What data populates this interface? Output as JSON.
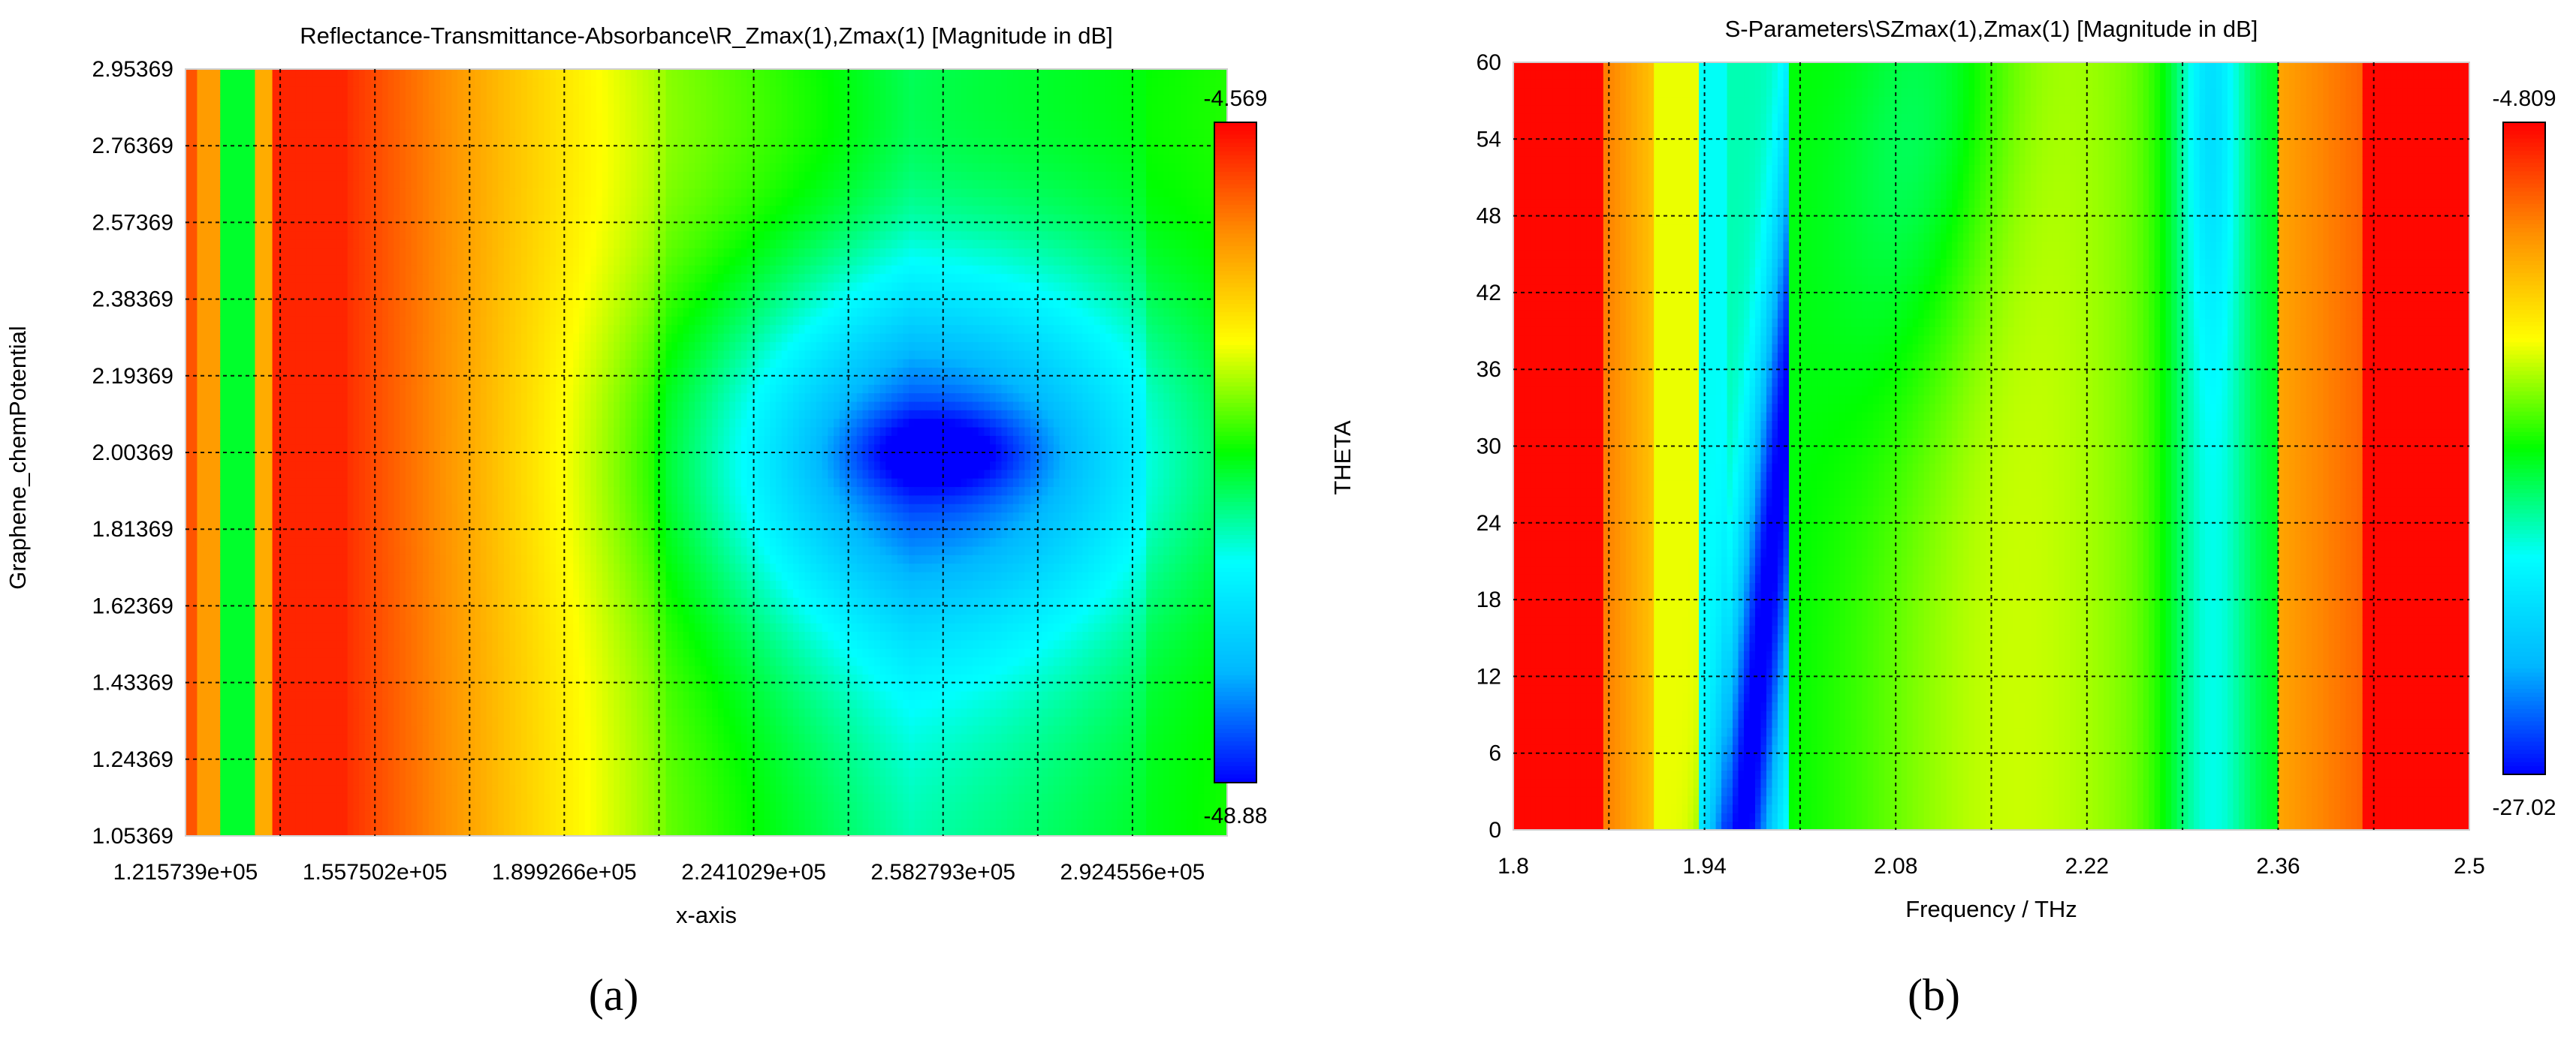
{
  "figure": {
    "labels": {
      "a": "(a)",
      "b": "(b)"
    }
  },
  "chart_data": [
    {
      "type": "heatmap",
      "title": "Reflectance-Transmittance-Absorbance\\R_Zmax(1),Zmax(1) [Magnitude in dB]",
      "xlabel": "x-axis",
      "ylabel": "Graphene_chemPotential",
      "x_ticks": [
        121573.9,
        155750.2,
        189926.6,
        224102.9,
        258279.3,
        292455.6
      ],
      "x_tick_labels": [
        "1.215739e+05",
        "1.557502e+05",
        "1.899266e+05",
        "2.241029e+05",
        "2.582793e+05",
        "2.924556e+05"
      ],
      "y_ticks": [
        1.05369,
        1.24369,
        1.43369,
        1.62369,
        1.81369,
        2.00369,
        2.19369,
        2.38369,
        2.57369,
        2.76369,
        2.95369
      ],
      "y_tick_labels": [
        "1.05369",
        "1.24369",
        "1.43369",
        "1.62369",
        "1.81369",
        "2.00369",
        "2.19369",
        "2.38369",
        "2.57369",
        "2.76369",
        "2.95369"
      ],
      "xlim": [
        121573.9,
        309543.8
      ],
      "ylim": [
        1.05369,
        2.95369
      ],
      "colorbar": {
        "min": -48.88,
        "max": -4.569,
        "min_label": "-48.88",
        "max_label": "-4.569"
      },
      "colormap": [
        "#0000ff",
        "#00b7ff",
        "#00ffff",
        "#00ff00",
        "#ffff00",
        "#ff8c00",
        "#ff0000"
      ],
      "grid": true,
      "description_features": {
        "minimum_location": {
          "x": 258279.3,
          "y": 2.00369,
          "value": -48.88
        },
        "left_edge_values": [
          -9,
          -13,
          -28,
          -13,
          -8,
          -5
        ]
      }
    },
    {
      "type": "heatmap",
      "title": "S-Parameters\\SZmax(1),Zmax(1) [Magnitude in dB]",
      "xlabel": "Frequency / THz",
      "ylabel": "THETA",
      "x_ticks": [
        1.8,
        1.94,
        2.08,
        2.22,
        2.36,
        2.5
      ],
      "x_tick_labels": [
        "1.8",
        "1.94",
        "2.08",
        "2.22",
        "2.36",
        "2.5"
      ],
      "y_ticks": [
        0,
        6,
        12,
        18,
        24,
        30,
        36,
        42,
        48,
        54,
        60
      ],
      "y_tick_labels": [
        "0",
        "6",
        "12",
        "18",
        "24",
        "30",
        "36",
        "42",
        "48",
        "54",
        "60"
      ],
      "xlim": [
        1.8,
        2.5
      ],
      "ylim": [
        0,
        60
      ],
      "colorbar": {
        "min": -27.02,
        "max": -4.809,
        "min_label": "-27.02",
        "max_label": "-4.809"
      },
      "colormap": [
        "#0000ff",
        "#00b7ff",
        "#00ffff",
        "#00ff00",
        "#ffff00",
        "#ff8c00",
        "#ff0000"
      ],
      "grid": true,
      "description_features": {
        "blue_band_frequency_at_theta_0": 1.97,
        "blue_band_frequency_at_theta_60": 2.03,
        "secondary_band_frequency": 2.31
      }
    }
  ]
}
